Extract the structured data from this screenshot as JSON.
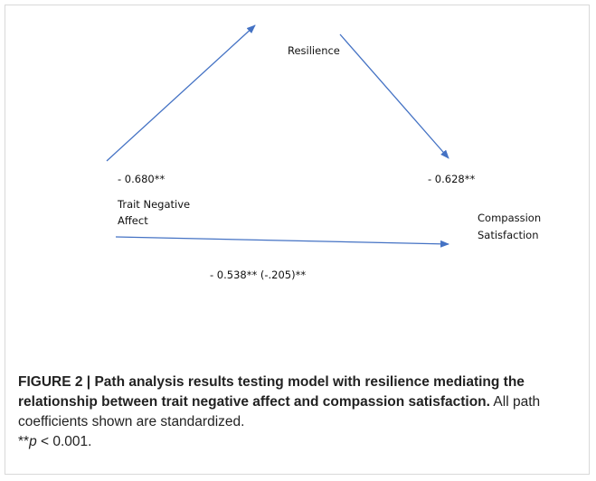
{
  "nodes": [
    {
      "label": "Resilience"
    },
    {
      "label": "Trait Negative\nAffect"
    },
    {
      "label": "Compassion\nSatisfaction"
    }
  ],
  "edges": [
    {
      "label": "- 0.680**"
    },
    {
      "label": "- 0.628**"
    },
    {
      "label": "- 0.538** (-.205)**"
    }
  ],
  "caption": {
    "label": "FIGURE 2 |",
    "title": "Path analysis results testing model with resilience mediating the relationship between trait negative affect and compassion satisfaction.",
    "text": "All path coefficients shown are standardized.",
    "note_stars": "**",
    "note_var": "p",
    "note_rest": "< 0.001."
  }
}
